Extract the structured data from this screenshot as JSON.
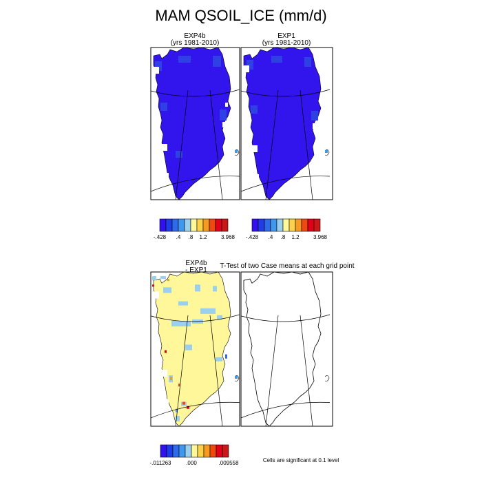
{
  "title": "MAM QSOIL_ICE (mm/d)",
  "panels": [
    {
      "id": "exp4b",
      "title_line1": "EXP4b",
      "title_line2": "(yrs 1981-2010)",
      "field": "mean"
    },
    {
      "id": "exp1",
      "title_line1": "EXP1",
      "title_line2": "(yrs 1981-2010)",
      "field": "mean"
    },
    {
      "id": "diff",
      "title_line1": "EXP4b",
      "title_line2": "- EXP1",
      "field": "difference"
    },
    {
      "id": "ttest",
      "title_line1": "T-Test of two Case means at each grid point",
      "title_line2": "",
      "field": "significance"
    }
  ],
  "colorbars": [
    {
      "id": "cb-mean-1",
      "colors": [
        "#3310ee",
        "#1f3ce6",
        "#2f6ae8",
        "#3f98f0",
        "#9ad0ee",
        "#fff89a",
        "#fbd24a",
        "#f79a22",
        "#ee4a10",
        "#e2001a",
        "#c81818"
      ],
      "labels": [
        "-.428",
        ".4",
        ".8",
        "1.2",
        "3.968"
      ]
    },
    {
      "id": "cb-mean-2",
      "colors": [
        "#3310ee",
        "#1f3ce6",
        "#2f6ae8",
        "#3f98f0",
        "#9ad0ee",
        "#fff89a",
        "#fbd24a",
        "#f79a22",
        "#ee4a10",
        "#e2001a",
        "#c81818"
      ],
      "labels": [
        "-.428",
        ".4",
        ".8",
        "1.2",
        "3.968"
      ]
    },
    {
      "id": "cb-diff",
      "colors": [
        "#3310ee",
        "#1f3ce6",
        "#2f6ae8",
        "#3f98f0",
        "#9ad0ee",
        "#fff89a",
        "#fbd24a",
        "#f79a22",
        "#ee4a10",
        "#e2001a",
        "#c81818"
      ],
      "labels": [
        "-.011263",
        ".000",
        ".009558"
      ]
    }
  ],
  "footnote": "Cells are significant at 0.1 level",
  "chart_data": [
    {
      "type": "heatmap",
      "panel": "EXP4b (yrs 1981-2010)",
      "region": "Greenland",
      "units": "mm/d",
      "dominant_range": [
        -0.428,
        0.4
      ],
      "colorbar_labels": [
        "-.428",
        ".4",
        ".8",
        "1.2",
        "3.968"
      ]
    },
    {
      "type": "heatmap",
      "panel": "EXP1 (yrs 1981-2010)",
      "region": "Greenland",
      "units": "mm/d",
      "dominant_range": [
        -0.428,
        0.4
      ],
      "colorbar_labels": [
        "-.428",
        ".4",
        ".8",
        "1.2",
        "3.968"
      ]
    },
    {
      "type": "heatmap",
      "panel": "EXP4b - EXP1",
      "region": "Greenland",
      "units": "mm/d",
      "dominant_range": [
        0.0,
        0.001
      ],
      "colorbar_labels": [
        "-.011263",
        ".000",
        ".009558"
      ]
    },
    {
      "type": "heatmap",
      "panel": "T-Test of two Case means at each grid point",
      "region": "Greenland",
      "significant_cells": 0
    }
  ]
}
